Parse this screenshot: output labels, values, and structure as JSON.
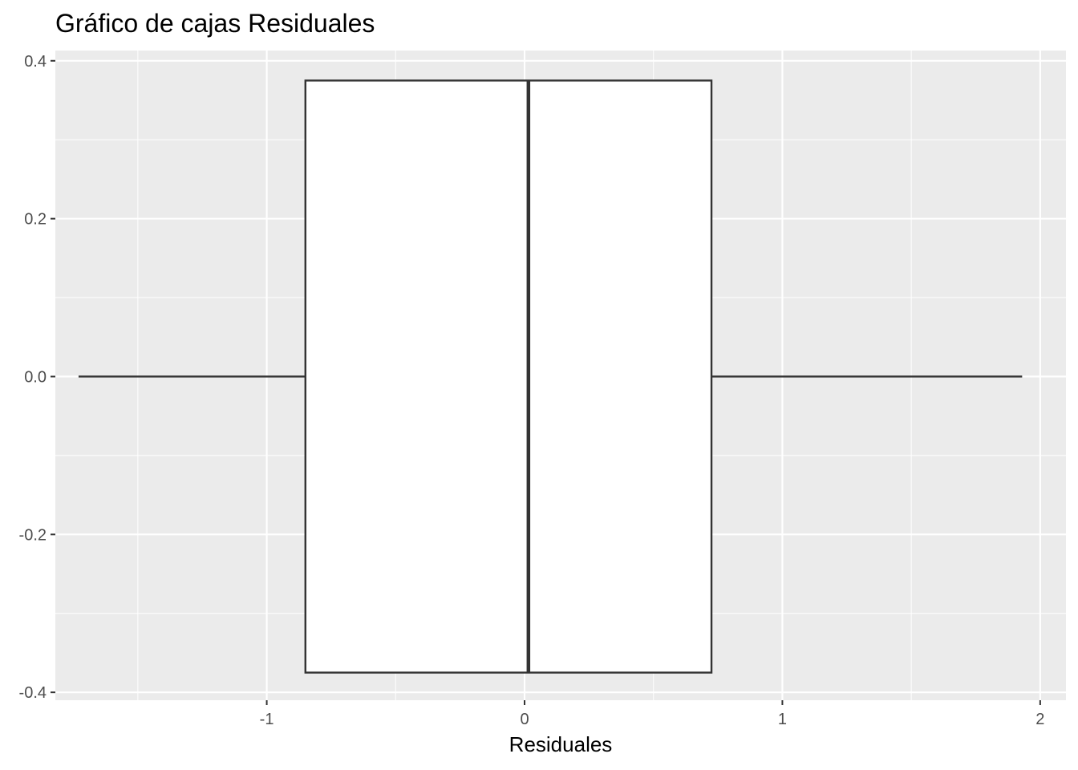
{
  "chart_data": {
    "type": "boxplot",
    "title": "Gráfico de cajas Residuales",
    "xlabel": "Residuales",
    "ylabel": "",
    "xlim": [
      -1.82,
      2.1
    ],
    "ylim": [
      -0.41,
      0.413
    ],
    "x_ticks": [
      -1,
      0,
      1,
      2
    ],
    "x_tick_labels": [
      "-1",
      "0",
      "1",
      "2"
    ],
    "y_ticks": [
      -0.4,
      -0.2,
      0.0,
      0.2,
      0.4
    ],
    "y_tick_labels": [
      "-0.4",
      "-0.2",
      "0.0",
      "0.2",
      "0.4"
    ],
    "grid": true,
    "orientation": "horizontal",
    "box": {
      "min": -1.73,
      "q1": -0.85,
      "median": 0.015,
      "q3": 0.725,
      "max": 1.93,
      "y_center": 0.0,
      "y_halfwidth": 0.375
    },
    "colors": {
      "panel_background": "#ebebeb",
      "grid_line": "#ffffff",
      "box_fill": "#ffffff",
      "box_stroke": "#333333",
      "tick_text": "#4d4d4d",
      "tick_mark": "#333333"
    }
  }
}
